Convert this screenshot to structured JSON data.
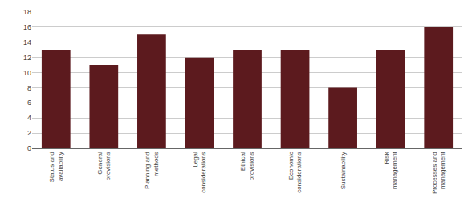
{
  "chart_data": {
    "type": "bar",
    "categories": [
      "Status and\navailability",
      "General\nprovisions",
      "Planning and\nmethods",
      "Legal\nconsiderations",
      "Ethical\nprovisions",
      "Economic\nconsiderations",
      "Sustainability",
      "Risk\nmanagement",
      "Processes and\nmanagement"
    ],
    "values": [
      13,
      11,
      15,
      12,
      13,
      13,
      8,
      13,
      16
    ],
    "color": "#5c1a1e",
    "ylim": [
      0,
      18
    ],
    "yticks": [
      0,
      2,
      4,
      6,
      8,
      10,
      12,
      14,
      16,
      18
    ],
    "grid": true
  }
}
